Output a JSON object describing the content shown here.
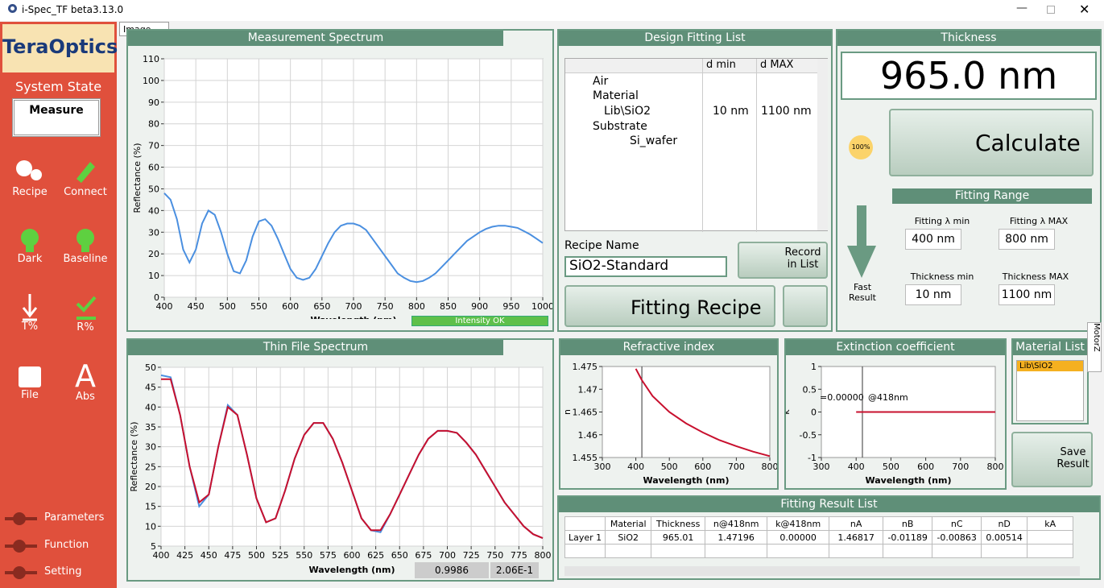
{
  "window": {
    "title": "i-Spec_TF beta3.13.0"
  },
  "sidebar": {
    "brand": "TeraOptics",
    "state_label": "System State",
    "state": "Measure",
    "buttons": [
      "Recipe",
      "Connect",
      "Dark",
      "Baseline",
      "T%",
      "R%",
      "File",
      "Abs"
    ],
    "menu": [
      "Parameters",
      "Function",
      "Setting"
    ]
  },
  "image_tab": "Image",
  "measurement_spectrum": {
    "title": "Measurement Spectrum",
    "status": "Intensity OK",
    "chart": {
      "type": "line",
      "x_label": "Wavelength (nm)",
      "y_label": "Reflectance (%)",
      "xlim": [
        400,
        1000
      ],
      "xticks": [
        400,
        450,
        500,
        550,
        600,
        650,
        700,
        750,
        800,
        850,
        900,
        950,
        1000
      ],
      "ylim": [
        0,
        110
      ],
      "yticks": [
        0,
        10,
        20,
        30,
        40,
        50,
        60,
        70,
        80,
        90,
        100,
        110
      ],
      "grid": true,
      "x": [
        400,
        410,
        420,
        430,
        440,
        450,
        460,
        470,
        480,
        490,
        500,
        510,
        520,
        530,
        540,
        550,
        560,
        570,
        580,
        590,
        600,
        610,
        620,
        630,
        640,
        650,
        660,
        670,
        680,
        690,
        700,
        710,
        720,
        730,
        740,
        750,
        760,
        770,
        780,
        790,
        800,
        810,
        820,
        830,
        840,
        850,
        860,
        870,
        880,
        890,
        900,
        910,
        920,
        930,
        940,
        950,
        960,
        970,
        980,
        990,
        1000
      ],
      "series": [
        {
          "color": "#4a8fe0",
          "values": [
            48,
            45,
            36,
            22,
            16,
            22,
            34,
            40,
            38,
            30,
            20,
            12,
            11,
            17,
            28,
            35,
            36,
            33,
            27,
            20,
            13,
            9,
            8,
            9,
            13,
            19,
            25,
            30,
            33,
            34,
            34,
            33,
            31,
            27,
            23,
            19,
            15,
            11,
            9,
            7.5,
            7,
            7.5,
            9,
            11,
            14,
            17,
            20,
            23,
            26,
            28,
            30,
            31.5,
            32.5,
            33,
            33,
            32.5,
            32,
            30.5,
            29,
            27,
            25
          ]
        }
      ]
    }
  },
  "thin_film_spectrum": {
    "title": "Thin File Spectrum",
    "fit_values": [
      "0.9986",
      "2.06E-1"
    ],
    "chart": {
      "type": "line",
      "x_label": "Wavelength (nm)",
      "y_label": "Reflectance (%)",
      "xlim": [
        400,
        800
      ],
      "xticks": [
        400,
        425,
        450,
        475,
        500,
        525,
        550,
        575,
        600,
        625,
        650,
        675,
        700,
        725,
        750,
        775,
        800
      ],
      "ylim": [
        5,
        50
      ],
      "yticks": [
        5,
        10,
        15,
        20,
        25,
        30,
        35,
        40,
        45,
        50
      ],
      "grid": true,
      "x": [
        400,
        410,
        420,
        430,
        440,
        450,
        460,
        470,
        480,
        490,
        500,
        510,
        520,
        530,
        540,
        550,
        560,
        570,
        580,
        590,
        600,
        610,
        620,
        630,
        640,
        650,
        660,
        670,
        680,
        690,
        700,
        710,
        720,
        730,
        740,
        750,
        760,
        770,
        780,
        790,
        800
      ],
      "series": [
        {
          "color": "#4a8fe0",
          "values": [
            48,
            47.5,
            38,
            25,
            15,
            18,
            30,
            40.5,
            38,
            28,
            17,
            11,
            12,
            19,
            27,
            33,
            36,
            36,
            32,
            26,
            19,
            12,
            9,
            8.5,
            13,
            18,
            23,
            28,
            32,
            34,
            34,
            33.5,
            31,
            28,
            24,
            20,
            16,
            13,
            10,
            8,
            7
          ]
        },
        {
          "color": "#c8102e",
          "values": [
            47,
            47,
            38,
            25,
            16,
            18,
            30,
            40,
            38,
            28,
            17,
            11,
            12,
            19,
            27,
            33,
            36,
            36,
            32,
            26,
            19,
            12,
            9,
            9,
            13,
            18,
            23,
            28,
            32,
            34,
            34,
            33.5,
            31,
            28,
            24,
            20,
            16,
            13,
            10,
            8,
            7
          ]
        }
      ]
    }
  },
  "design_fitting_list": {
    "title": "Design Fitting List",
    "headers": [
      "d min",
      "d MAX"
    ],
    "rows": [
      {
        "name": "Air"
      },
      {
        "name": "Material"
      },
      {
        "name": "Lib\\SiO2",
        "d_min": "10 nm",
        "d_max": "1100 nm"
      },
      {
        "name": "Substrate"
      },
      {
        "name": "Si_wafer"
      }
    ]
  },
  "recipe": {
    "name_label": "Recipe Name",
    "name": "SiO2-Standard",
    "record": "Record in List",
    "fitting_recipe": "Fitting Recipe"
  },
  "thickness": {
    "title": "Thickness",
    "value": "965.0 nm",
    "calculate": "Calculate",
    "progress": "100%",
    "fast_result": "Fast Result"
  },
  "fitting_range": {
    "title": "Fitting Range",
    "fields": [
      {
        "label": "Fitting λ min",
        "value": "400 nm"
      },
      {
        "label": "Fitting λ MAX",
        "value": "800 nm"
      },
      {
        "label": "Thickness min",
        "value": "10 nm"
      },
      {
        "label": "Thickness MAX",
        "value": "1100 nm"
      }
    ]
  },
  "refractive_index": {
    "title": "Refractive index",
    "chart": {
      "type": "line",
      "x_label": "Wavelength (nm)",
      "y_label": "n",
      "xlim": [
        300,
        800
      ],
      "xticks": [
        300,
        400,
        500,
        600,
        700,
        800
      ],
      "ylim": [
        1.455,
        1.475
      ],
      "yticks": [
        1.455,
        1.46,
        1.465,
        1.47,
        1.475
      ],
      "cursor": 418,
      "x": [
        400,
        418,
        450,
        500,
        550,
        600,
        650,
        700,
        750,
        800
      ],
      "series": [
        {
          "color": "#c8102e",
          "values": [
            1.4745,
            1.472,
            1.4685,
            1.465,
            1.4625,
            1.4605,
            1.4588,
            1.4575,
            1.4563,
            1.4553
          ]
        }
      ]
    }
  },
  "extinction_coefficient": {
    "title": "Extinction coefficient",
    "annotations": [
      "=0.00000",
      "@418nm"
    ],
    "chart": {
      "type": "line",
      "x_label": "Wavelength (nm)",
      "y_label": "k",
      "xlim": [
        300,
        800
      ],
      "xticks": [
        300,
        400,
        500,
        600,
        700,
        800
      ],
      "ylim": [
        -1,
        1
      ],
      "yticks": [
        -1,
        -0.5,
        0,
        0.5,
        1
      ],
      "cursor": 418,
      "x": [
        400,
        800
      ],
      "series": [
        {
          "color": "#c8102e",
          "values": [
            0,
            0
          ]
        }
      ]
    }
  },
  "material_list": {
    "title": "Material List",
    "items": [
      "Lib\\SiO2"
    ],
    "side_tab": "MotorZ"
  },
  "save_result": "Save Result",
  "fitting_result_list": {
    "title": "Fitting Result List",
    "headers": [
      "Material",
      "Thickness",
      "n@418nm",
      "k@418nm",
      "nA",
      "nB",
      "nC",
      "nD",
      "kA"
    ],
    "rows": [
      [
        "Layer 1",
        "SiO2",
        "965.01",
        "1.47196",
        "0.00000",
        "1.46817",
        "-0.01189",
        "-0.00863",
        "0.00514"
      ]
    ]
  }
}
